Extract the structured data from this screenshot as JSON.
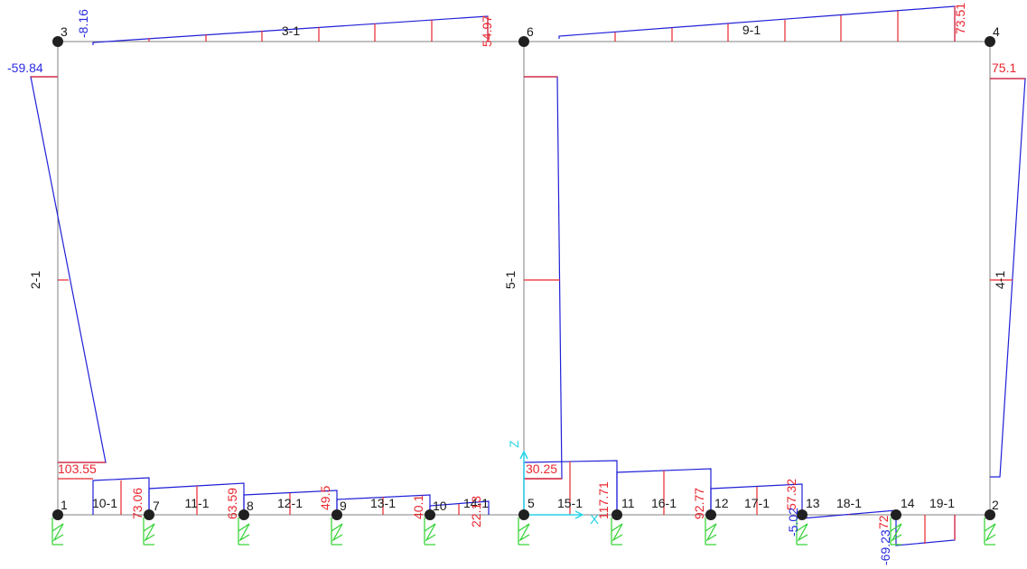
{
  "colors": {
    "frame": "#808080",
    "moment_line": "#2020d8",
    "ordinate": "#e8262f",
    "positive_value": "#e8262f",
    "negative_value": "#2a2ae0",
    "node": "#202020",
    "support": "#2fd12f",
    "axis": "#29d3e6"
  },
  "nodes": [
    {
      "id": "1",
      "label": "1"
    },
    {
      "id": "2",
      "label": "2"
    },
    {
      "id": "3",
      "label": "3"
    },
    {
      "id": "4",
      "label": "4"
    },
    {
      "id": "5",
      "label": "5"
    },
    {
      "id": "6",
      "label": "6"
    },
    {
      "id": "7",
      "label": "7"
    },
    {
      "id": "8",
      "label": "8"
    },
    {
      "id": "9",
      "label": "9"
    },
    {
      "id": "10",
      "label": "10"
    },
    {
      "id": "11",
      "label": "11"
    },
    {
      "id": "12",
      "label": "12"
    },
    {
      "id": "13",
      "label": "13"
    },
    {
      "id": "14",
      "label": "14"
    }
  ],
  "members": [
    {
      "label": "2-1"
    },
    {
      "label": "3-1"
    },
    {
      "label": "4-1"
    },
    {
      "label": "5-1"
    },
    {
      "label": "9-1"
    },
    {
      "label": "10-1"
    },
    {
      "label": "11-1"
    },
    {
      "label": "12-1"
    },
    {
      "label": "13-1"
    },
    {
      "label": "14-1"
    },
    {
      "label": "15-1"
    },
    {
      "label": "16-1"
    },
    {
      "label": "17-1"
    },
    {
      "label": "18-1"
    },
    {
      "label": "19-1"
    }
  ],
  "values": [
    {
      "text": "-59.84",
      "sign": "negative"
    },
    {
      "text": "-8.16",
      "sign": "negative"
    },
    {
      "text": "54.97",
      "sign": "positive"
    },
    {
      "text": "73.51",
      "sign": "positive"
    },
    {
      "text": "75.1",
      "sign": "positive"
    },
    {
      "text": "103.55",
      "sign": "positive"
    },
    {
      "text": "73.06",
      "sign": "positive"
    },
    {
      "text": "63.59",
      "sign": "positive"
    },
    {
      "text": "49.5",
      "sign": "positive"
    },
    {
      "text": "40.1",
      "sign": "positive"
    },
    {
      "text": "22.13",
      "sign": "positive"
    },
    {
      "text": "30.25",
      "sign": "positive"
    },
    {
      "text": "117.71",
      "sign": "positive"
    },
    {
      "text": "92.77",
      "sign": "positive"
    },
    {
      "text": "57.32",
      "sign": "positive"
    },
    {
      "text": "-5.02",
      "sign": "negative"
    },
    {
      "text": "72",
      "sign": "positive"
    },
    {
      "text": "-69.23",
      "sign": "negative"
    }
  ],
  "axis": {
    "y_label": "Z",
    "x_label": "X"
  }
}
